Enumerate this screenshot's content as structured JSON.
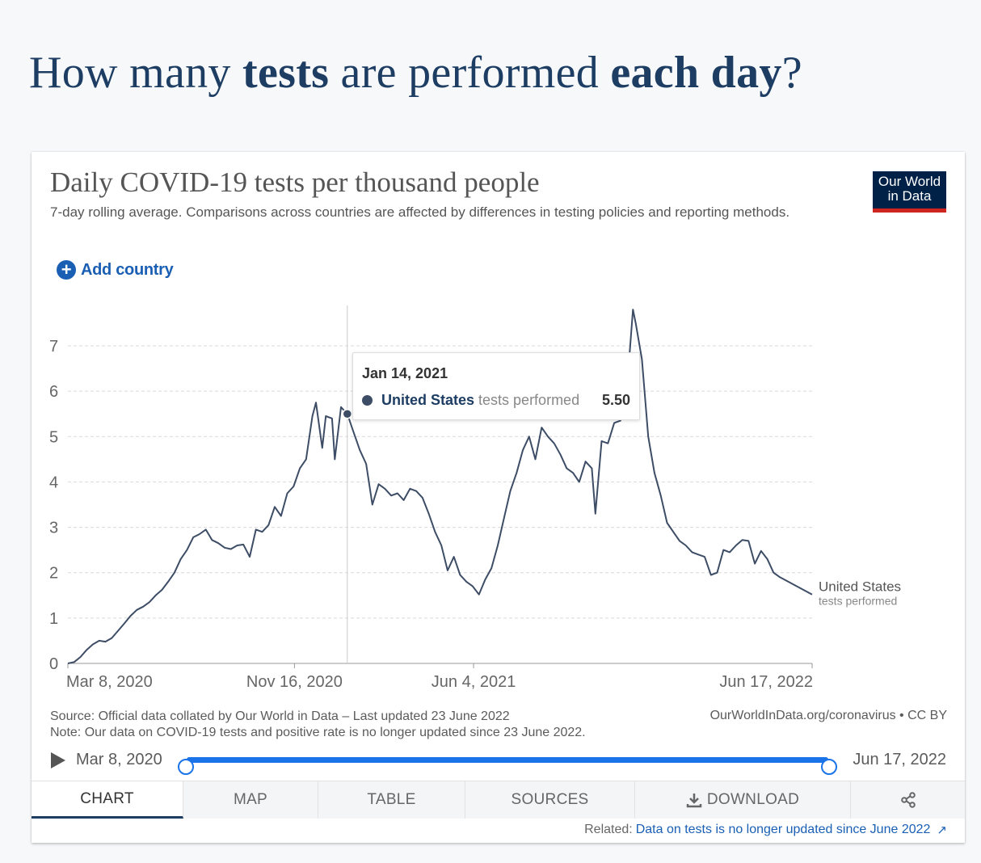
{
  "page": {
    "headline_parts": [
      "How many ",
      "tests",
      " are performed ",
      "each day",
      "?"
    ]
  },
  "card": {
    "title": "Daily COVID-19 tests per thousand people",
    "subtitle": "7-day rolling average. Comparisons across countries are affected by differences in testing policies and reporting methods.",
    "logo_line1": "Our World",
    "logo_line2": "in Data",
    "add_country": "Add country",
    "source": "Source: Official data collated by Our World in Data – Last updated 23 June 2022",
    "note": "Note: Our data on COVID-19 tests and positive rate is no longer updated since 23 June 2022.",
    "owid_url": "OurWorldInData.org/coronavirus • CC BY"
  },
  "tooltip": {
    "date": "Jan 14, 2021",
    "entity": "United States",
    "metric": "tests performed",
    "value": "5.50",
    "dot_color": "#3d4d66"
  },
  "timeline": {
    "start": "Mar 8, 2020",
    "end": "Jun 17, 2022",
    "start_fraction": 0,
    "end_fraction": 1,
    "accent": "#1a73e8"
  },
  "tabs": [
    {
      "label": "CHART",
      "active": true
    },
    {
      "label": "MAP"
    },
    {
      "label": "TABLE"
    },
    {
      "label": "SOURCES"
    },
    {
      "label": "DOWNLOAD",
      "icon": "download-icon"
    },
    {
      "label": "",
      "icon": "share-icon"
    }
  ],
  "related": {
    "prefix": "Related:",
    "link": "Data on tests is no longer updated since June 2022"
  },
  "chart_data": {
    "type": "line",
    "title": "Daily COVID-19 tests per thousand people",
    "xlabel": "",
    "ylabel": "",
    "x_ticks": [
      "Mar 8, 2020",
      "Nov 16, 2020",
      "Jun 4, 2021",
      "Jun 17, 2022"
    ],
    "y_ticks": [
      0,
      1,
      2,
      3,
      4,
      5,
      6,
      7
    ],
    "ylim": [
      0,
      7.9
    ],
    "xlim": [
      "2020-03-08",
      "2022-06-17"
    ],
    "grid": "horizontal dashed",
    "line_color": "#3d4d66",
    "hover_date": "2021-01-14",
    "series": [
      {
        "name": "United States",
        "label_line2": "tests performed",
        "points": [
          [
            "2020-03-08",
            0.0
          ],
          [
            "2020-03-15",
            0.03
          ],
          [
            "2020-03-22",
            0.14
          ],
          [
            "2020-03-29",
            0.3
          ],
          [
            "2020-04-05",
            0.42
          ],
          [
            "2020-04-12",
            0.5
          ],
          [
            "2020-04-19",
            0.48
          ],
          [
            "2020-04-26",
            0.56
          ],
          [
            "2020-05-03",
            0.72
          ],
          [
            "2020-05-10",
            0.88
          ],
          [
            "2020-05-17",
            1.05
          ],
          [
            "2020-05-24",
            1.18
          ],
          [
            "2020-05-31",
            1.25
          ],
          [
            "2020-06-07",
            1.35
          ],
          [
            "2020-06-14",
            1.5
          ],
          [
            "2020-06-21",
            1.62
          ],
          [
            "2020-06-28",
            1.8
          ],
          [
            "2020-07-05",
            2.0
          ],
          [
            "2020-07-12",
            2.3
          ],
          [
            "2020-07-19",
            2.5
          ],
          [
            "2020-07-26",
            2.78
          ],
          [
            "2020-08-02",
            2.85
          ],
          [
            "2020-08-09",
            2.95
          ],
          [
            "2020-08-16",
            2.72
          ],
          [
            "2020-08-23",
            2.65
          ],
          [
            "2020-08-30",
            2.55
          ],
          [
            "2020-09-06",
            2.52
          ],
          [
            "2020-09-13",
            2.6
          ],
          [
            "2020-09-20",
            2.62
          ],
          [
            "2020-09-27",
            2.35
          ],
          [
            "2020-10-04",
            2.95
          ],
          [
            "2020-10-11",
            2.9
          ],
          [
            "2020-10-18",
            3.05
          ],
          [
            "2020-10-25",
            3.45
          ],
          [
            "2020-11-01",
            3.25
          ],
          [
            "2020-11-08",
            3.75
          ],
          [
            "2020-11-15",
            3.9
          ],
          [
            "2020-11-22",
            4.3
          ],
          [
            "2020-11-29",
            4.5
          ],
          [
            "2020-12-06",
            5.45
          ],
          [
            "2020-12-10",
            5.75
          ],
          [
            "2020-12-17",
            4.75
          ],
          [
            "2020-12-21",
            5.45
          ],
          [
            "2020-12-28",
            5.4
          ],
          [
            "2020-12-31",
            4.5
          ],
          [
            "2021-01-07",
            5.65
          ],
          [
            "2021-01-14",
            5.5
          ],
          [
            "2021-01-21",
            5.1
          ],
          [
            "2021-01-28",
            4.7
          ],
          [
            "2021-02-04",
            4.4
          ],
          [
            "2021-02-11",
            3.5
          ],
          [
            "2021-02-18",
            3.95
          ],
          [
            "2021-02-25",
            3.85
          ],
          [
            "2021-03-04",
            3.7
          ],
          [
            "2021-03-11",
            3.75
          ],
          [
            "2021-03-18",
            3.6
          ],
          [
            "2021-03-25",
            3.85
          ],
          [
            "2021-04-01",
            3.8
          ],
          [
            "2021-04-08",
            3.65
          ],
          [
            "2021-04-15",
            3.3
          ],
          [
            "2021-04-22",
            2.9
          ],
          [
            "2021-04-29",
            2.6
          ],
          [
            "2021-05-06",
            2.05
          ],
          [
            "2021-05-13",
            2.35
          ],
          [
            "2021-05-20",
            1.95
          ],
          [
            "2021-05-27",
            1.8
          ],
          [
            "2021-06-03",
            1.7
          ],
          [
            "2021-06-10",
            1.52
          ],
          [
            "2021-06-17",
            1.85
          ],
          [
            "2021-06-24",
            2.1
          ],
          [
            "2021-07-01",
            2.6
          ],
          [
            "2021-07-08",
            3.2
          ],
          [
            "2021-07-15",
            3.8
          ],
          [
            "2021-07-22",
            4.2
          ],
          [
            "2021-07-29",
            4.7
          ],
          [
            "2021-08-05",
            5.0
          ],
          [
            "2021-08-12",
            4.5
          ],
          [
            "2021-08-19",
            5.2
          ],
          [
            "2021-08-26",
            5.0
          ],
          [
            "2021-09-02",
            4.85
          ],
          [
            "2021-09-09",
            4.6
          ],
          [
            "2021-09-16",
            4.3
          ],
          [
            "2021-09-23",
            4.2
          ],
          [
            "2021-09-30",
            4.0
          ],
          [
            "2021-10-07",
            4.45
          ],
          [
            "2021-10-14",
            4.3
          ],
          [
            "2021-10-18",
            3.3
          ],
          [
            "2021-10-25",
            4.9
          ],
          [
            "2021-11-01",
            4.85
          ],
          [
            "2021-11-08",
            5.3
          ],
          [
            "2021-11-15",
            5.35
          ],
          [
            "2021-11-22",
            6.0
          ],
          [
            "2021-11-29",
            7.8
          ],
          [
            "2021-12-02",
            7.5
          ],
          [
            "2021-12-09",
            6.7
          ],
          [
            "2021-12-16",
            5.0
          ],
          [
            "2021-12-23",
            4.2
          ],
          [
            "2021-12-30",
            3.7
          ],
          [
            "2022-01-06",
            3.1
          ],
          [
            "2022-01-13",
            2.9
          ],
          [
            "2022-01-20",
            2.7
          ],
          [
            "2022-01-27",
            2.6
          ],
          [
            "2022-02-03",
            2.45
          ],
          [
            "2022-02-10",
            2.4
          ],
          [
            "2022-02-17",
            2.35
          ],
          [
            "2022-02-24",
            1.95
          ],
          [
            "2022-03-03",
            2.0
          ],
          [
            "2022-03-10",
            2.5
          ],
          [
            "2022-03-17",
            2.45
          ],
          [
            "2022-03-24",
            2.6
          ],
          [
            "2022-03-31",
            2.72
          ],
          [
            "2022-04-07",
            2.7
          ],
          [
            "2022-04-14",
            2.2
          ],
          [
            "2022-04-21",
            2.48
          ],
          [
            "2022-04-28",
            2.3
          ],
          [
            "2022-05-05",
            2.0
          ],
          [
            "2022-05-12",
            1.9
          ],
          [
            "2022-06-17",
            1.52
          ]
        ]
      }
    ]
  }
}
